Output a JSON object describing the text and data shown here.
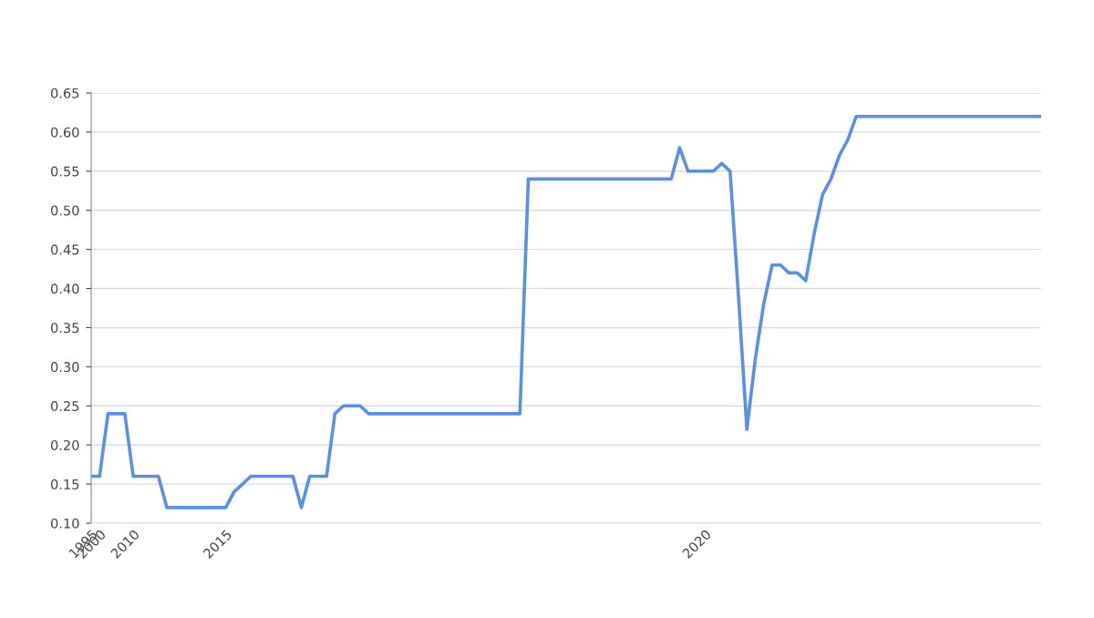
{
  "chart_data": {
    "type": "line",
    "categories": [
      "1995",
      "2000",
      null,
      null,
      null,
      "2010",
      null,
      null,
      null,
      null,
      null,
      null,
      null,
      null,
      null,
      null,
      "2015",
      null,
      null,
      null,
      null,
      null,
      null,
      null,
      null,
      null,
      null,
      null,
      null,
      null,
      null,
      null,
      null,
      null,
      null,
      null,
      null,
      null,
      null,
      null,
      null,
      null,
      null,
      null,
      null,
      null,
      null,
      null,
      null,
      null,
      null,
      null,
      null,
      null,
      null,
      null,
      null,
      null,
      null,
      null,
      null,
      null,
      null,
      null,
      null,
      null,
      null,
      null,
      null,
      null,
      null,
      null,
      null,
      "2020",
      null,
      null,
      null,
      null,
      null,
      null,
      null,
      null,
      null,
      null,
      null,
      null,
      null,
      null,
      null,
      null,
      null,
      null,
      null,
      null,
      null,
      null,
      null,
      null,
      null,
      null,
      null,
      null,
      null,
      null,
      null,
      null,
      null,
      null,
      null,
      null,
      null,
      null,
      null,
      null
    ],
    "series": [
      {
        "color": "#5b8ee6",
        "values": [
          0.16,
          0.16,
          0.24,
          0.24,
          0.24,
          0.16,
          0.16,
          0.16,
          0.16,
          0.12,
          0.12,
          0.12,
          0.12,
          0.12,
          0.12,
          0.12,
          0.12,
          0.14,
          0.15,
          0.16,
          0.16,
          0.16,
          0.16,
          0.16,
          0.16,
          0.12,
          0.16,
          0.16,
          0.16,
          0.24,
          0.25,
          0.25,
          0.25,
          0.24,
          0.24,
          0.24,
          0.24,
          0.24,
          0.24,
          0.24,
          0.24,
          0.24,
          0.24,
          0.24,
          0.24,
          0.24,
          0.24,
          0.24,
          0.24,
          0.24,
          0.24,
          0.24,
          0.54,
          0.54,
          0.54,
          0.54,
          0.54,
          0.54,
          0.54,
          0.54,
          0.54,
          0.54,
          0.54,
          0.54,
          0.54,
          0.54,
          0.54,
          0.54,
          0.54,
          0.54,
          0.58,
          0.55,
          0.55,
          0.55,
          0.55,
          0.56,
          0.55,
          0.39,
          0.22,
          0.31,
          0.38,
          0.43,
          0.43,
          0.42,
          0.42,
          0.41,
          0.47,
          0.52,
          0.54,
          0.57,
          0.59,
          0.62,
          0.62,
          0.62,
          0.62,
          0.62,
          0.62,
          0.62,
          0.62,
          0.62,
          0.62,
          0.62,
          0.62,
          0.62,
          0.62,
          0.62,
          0.62,
          0.62,
          0.62,
          0.62,
          0.62,
          0.62,
          0.62,
          0.62
        ]
      }
    ],
    "ylim": [
      0.1,
      0.65
    ],
    "yticks": [
      {
        "value": 0.1,
        "label": "0.10"
      },
      {
        "value": 0.15,
        "label": "0.15"
      },
      {
        "value": 0.2,
        "label": "0.20"
      },
      {
        "value": 0.25,
        "label": "0.25"
      },
      {
        "value": 0.3,
        "label": "0.30"
      },
      {
        "value": 0.35,
        "label": "0.35"
      },
      {
        "value": 0.4,
        "label": "0.40"
      },
      {
        "value": 0.45,
        "label": "0.45"
      },
      {
        "value": 0.5,
        "label": "0.50"
      },
      {
        "value": 0.55,
        "label": "0.55"
      },
      {
        "value": 0.6,
        "label": "0.60"
      },
      {
        "value": 0.65,
        "label": "0.65"
      }
    ],
    "grid": "y",
    "marker": "none",
    "line_style": "solid"
  }
}
